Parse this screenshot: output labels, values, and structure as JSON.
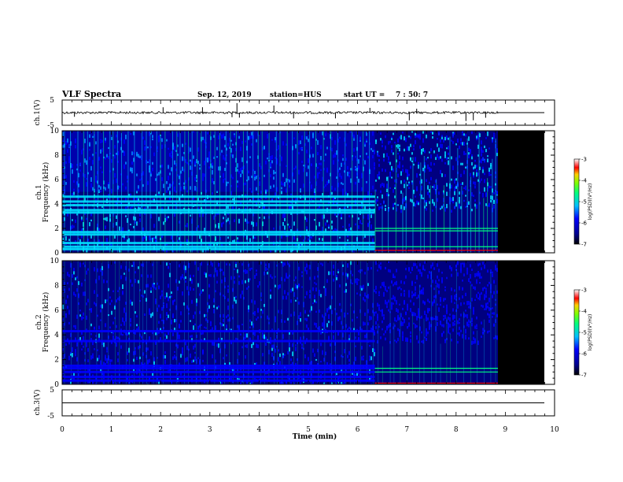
{
  "header": {
    "title": "VLF Spectra",
    "date": "Sep. 12, 2019",
    "station": "station=HUS",
    "start_label": "start  UT =",
    "start_time": "7 : 50: 7"
  },
  "chart_data": [
    {
      "type": "line",
      "name": "ch.1 waveform",
      "ylabel": "ch.1(V)",
      "ylim": [
        -5,
        5
      ],
      "y_ticks": [
        "5",
        "-5"
      ],
      "xlim": [
        0,
        10
      ],
      "baseline_value": 0,
      "data_ends_min": 8.85,
      "spikes_min": [
        3.55,
        3.6,
        0.25,
        2.05,
        2.85,
        3.45,
        4.3,
        4.7,
        5.55,
        6.25,
        7.05,
        7.2,
        8.2,
        8.35,
        8.6
      ]
    },
    {
      "type": "heatmap",
      "name": "ch.1 spectrogram",
      "ylabel": "ch.1 Frequency (kHz)",
      "ylim": [
        0,
        10
      ],
      "y_ticks": [
        "0",
        "2",
        "4",
        "6",
        "8",
        "10"
      ],
      "xlim": [
        0,
        10
      ],
      "data_ends_min": 8.85,
      "regime_change_min": 6.35,
      "horizontal_lines_khz_before": [
        0.3,
        0.5,
        0.8,
        1.5,
        1.7,
        3.3,
        3.5,
        3.9,
        4.2,
        4.6
      ],
      "horizontal_lines_khz_after": [
        0.2,
        0.5,
        1.8,
        2.0
      ],
      "colorbar": {
        "label": "log(PSD)(V²/Hz)",
        "ticks": [
          "-3",
          "-4",
          "-5",
          "-6",
          "-7"
        ],
        "range": [
          -7,
          -3
        ]
      }
    },
    {
      "type": "heatmap",
      "name": "ch.2 spectrogram",
      "ylabel": "ch.2 Frequency (kHz)",
      "ylim": [
        0,
        10
      ],
      "y_ticks": [
        "0",
        "2",
        "4",
        "6",
        "8",
        "10"
      ],
      "xlim": [
        0,
        10
      ],
      "data_ends_min": 8.85,
      "regime_change_min": 6.35,
      "horizontal_lines_khz_before": [
        0.3,
        0.6,
        1.0,
        1.3,
        1.5,
        3.5,
        4.3
      ],
      "horizontal_lines_khz_after": [
        0.1,
        1.0,
        1.3
      ],
      "colorbar": {
        "label": "log(PSD)(V²/Hz)",
        "ticks": [
          "-3",
          "-4",
          "-5",
          "-6",
          "-7"
        ],
        "range": [
          -7,
          -3
        ]
      }
    },
    {
      "type": "line",
      "name": "ch.3 waveform",
      "ylabel": "ch.3(V)",
      "ylim": [
        -5,
        5
      ],
      "y_ticks": [
        "5",
        "-5"
      ],
      "xlim": [
        0,
        10
      ],
      "baseline_value": 0
    }
  ],
  "x_axis": {
    "label": "Time  (min)",
    "ticks": [
      "0",
      "1",
      "2",
      "3",
      "4",
      "5",
      "6",
      "7",
      "8",
      "9",
      "10"
    ]
  },
  "colors": {
    "background": "#000080",
    "band": "#0000ff",
    "cyan": "#00e0ff",
    "green": "#00ff80",
    "red": "#ff0000",
    "no_data": "#000000"
  }
}
